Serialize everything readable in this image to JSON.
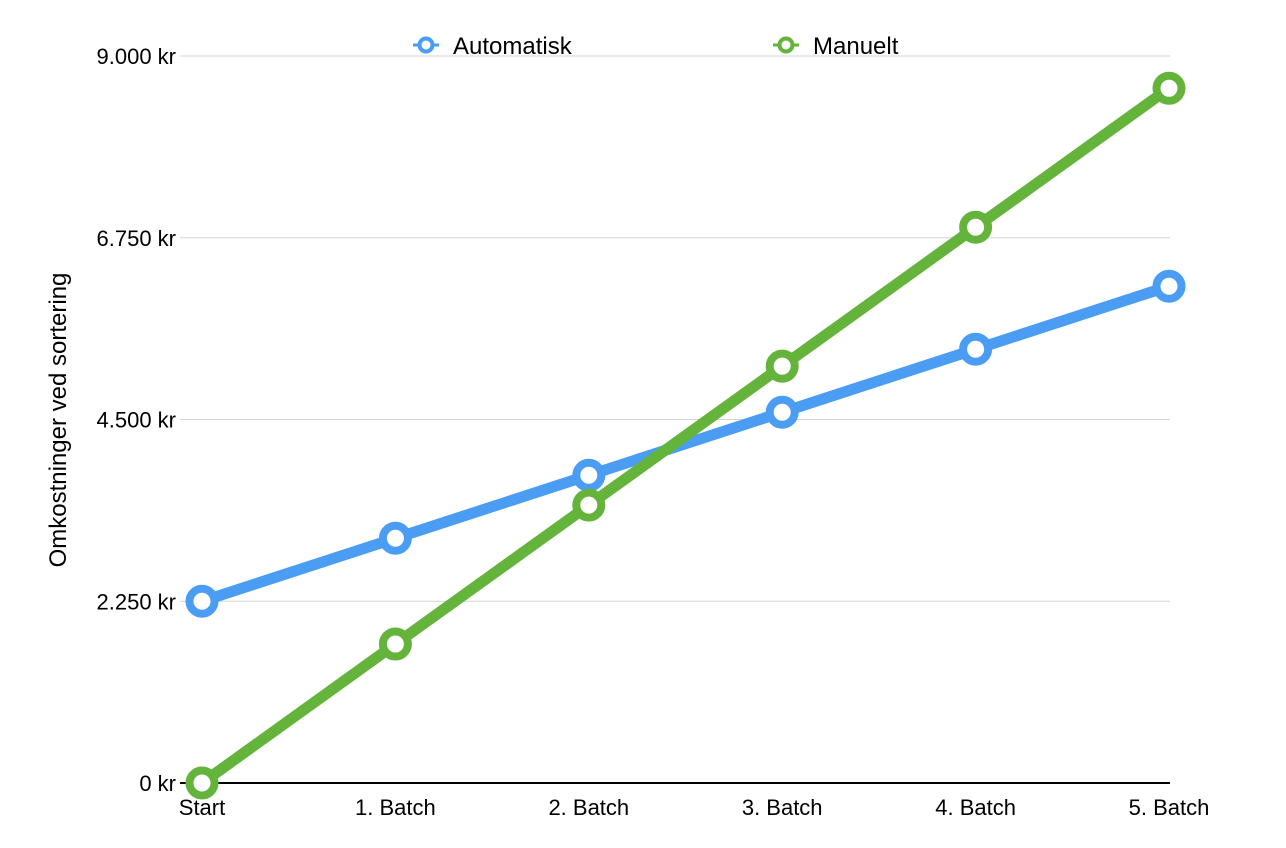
{
  "chart_data": {
    "type": "line",
    "title": "",
    "xlabel": "",
    "ylabel": "Omkostninger ved sortering",
    "categories": [
      "Start",
      "1. Batch",
      "2. Batch",
      "3. Batch",
      "4. Batch",
      "5. Batch"
    ],
    "yticks": [
      0,
      2250,
      4500,
      6750,
      9000
    ],
    "ytick_labels": [
      "0 kr",
      "2.250 kr",
      "4.500 kr",
      "6.750 kr",
      "9.000 kr"
    ],
    "ylim": [
      0,
      9000
    ],
    "grid": true,
    "legend_position": "top",
    "series": [
      {
        "name": "Automatisk",
        "color": "#4A9DF2",
        "values": [
          2250,
          3030,
          3810,
          4590,
          5370,
          6150
        ]
      },
      {
        "name": "Manuelt",
        "color": "#64B43C",
        "values": [
          0,
          1720,
          3440,
          5160,
          6880,
          8600
        ]
      }
    ]
  }
}
